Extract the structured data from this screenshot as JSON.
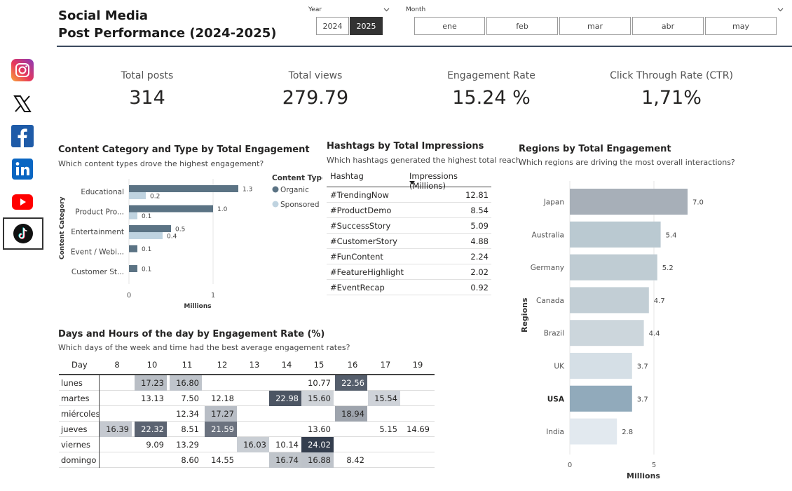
{
  "header": {
    "title_line1": "Social Media",
    "title_line2": "Post Performance (2024-2025)"
  },
  "social_icons": [
    "instagram-icon",
    "x-icon",
    "facebook-icon",
    "linkedin-icon",
    "youtube-icon",
    "tiktok-icon"
  ],
  "year_slicer": {
    "label": "Year",
    "options": [
      {
        "label": "2024",
        "selected": false
      },
      {
        "label": "2025",
        "selected": true
      }
    ]
  },
  "month_slicer": {
    "label": "Month",
    "options": [
      {
        "label": "ene",
        "selected": false
      },
      {
        "label": "feb",
        "selected": false
      },
      {
        "label": "mar",
        "selected": false
      },
      {
        "label": "abr",
        "selected": false
      },
      {
        "label": "may",
        "selected": false
      }
    ]
  },
  "kpis": [
    {
      "label": "Total posts",
      "value": "314"
    },
    {
      "label": "Total views",
      "value": "279.79"
    },
    {
      "label": "Engagement Rate",
      "value": "15.24 %"
    },
    {
      "label": "Click Through Rate (CTR)",
      "value": "1,71%"
    }
  ],
  "content_chart": {
    "title": "Content Category and Type by Total Engagement",
    "subtitle": "Which content types drove the highest engagement?",
    "ylabel": "Content Category",
    "xlabel": "Millions",
    "legend_title": "Content Type",
    "colors": {
      "Organic": "#5b7384",
      "Sponsored": "#bfd3e0"
    }
  },
  "hashtag_table": {
    "title": "Hashtags by Total Impressions",
    "subtitle": "Which hashtags generated the highest total reach",
    "col_hashtag": "Hashtag",
    "col_impressions": "Impressions (Millions)",
    "rows": [
      {
        "hashtag": "#TrendingNow",
        "value": "12.81"
      },
      {
        "hashtag": "#ProductDemo",
        "value": "8.54"
      },
      {
        "hashtag": "#SuccessStory",
        "value": "5.09"
      },
      {
        "hashtag": "#CustomerStory",
        "value": "4.88"
      },
      {
        "hashtag": "#FunContent",
        "value": "2.24"
      },
      {
        "hashtag": "#FeatureHighlight",
        "value": "2.02"
      },
      {
        "hashtag": "#EventRecap",
        "value": "0.92"
      }
    ]
  },
  "heatmap": {
    "title": "Days and Hours of the day by Engagement Rate (%)",
    "subtitle": "Which days of the week and time had the best average engagement rates?",
    "day_header": "Day",
    "hours": [
      "8",
      "10",
      "11",
      "12",
      "13",
      "14",
      "15",
      "16",
      "17",
      "19"
    ],
    "rows": [
      {
        "day": "lunes",
        "values": [
          null,
          "17.23",
          "16.80",
          null,
          null,
          null,
          "10.77",
          "22.56",
          null,
          null
        ]
      },
      {
        "day": "martes",
        "values": [
          null,
          "13.13",
          "7.50",
          "12.18",
          null,
          "22.98",
          "15.60",
          null,
          "15.54",
          null
        ]
      },
      {
        "day": "miércoles",
        "values": [
          null,
          null,
          "12.34",
          "17.27",
          null,
          null,
          null,
          "18.94",
          null,
          null
        ]
      },
      {
        "day": "jueves",
        "values": [
          "16.39",
          "22.32",
          "8.51",
          "21.59",
          null,
          null,
          "13.60",
          null,
          "5.15",
          "14.69"
        ]
      },
      {
        "day": "viernes",
        "values": [
          null,
          "9.09",
          "13.29",
          null,
          "16.03",
          "10.14",
          "24.02",
          null,
          null,
          null
        ]
      },
      {
        "day": "domingo",
        "values": [
          null,
          null,
          "8.60",
          "14.55",
          null,
          "16.74",
          "16.88",
          "8.42",
          null,
          null
        ]
      }
    ]
  },
  "chart_data": [
    {
      "type": "bar",
      "orientation": "horizontal",
      "title": "Content Category and Type by Total Engagement",
      "subtitle": "Which content types drove the highest engagement?",
      "ylabel": "Content Category",
      "xlabel": "Millions",
      "categories": [
        "Educational",
        "Product Pro...",
        "Entertainment",
        "Event / Webi...",
        "Customer St..."
      ],
      "series": [
        {
          "name": "Organic",
          "values": [
            1.3,
            1.0,
            0.5,
            0.1,
            0.1
          ]
        },
        {
          "name": "Sponsored",
          "values": [
            0.2,
            0.1,
            0.4,
            null,
            null
          ]
        }
      ],
      "xlim": [
        0,
        1.3
      ],
      "xticks": [
        "0",
        "1"
      ],
      "legend": "right",
      "grid": true
    },
    {
      "type": "bar",
      "orientation": "horizontal",
      "title": "Regions by Total Engagement",
      "subtitle": "Which regions are driving the most overall interactions?",
      "ylabel": "Regions",
      "xlabel": "Millions",
      "categories": [
        "Japan",
        "Australia",
        "Germany",
        "Canada",
        "Brazil",
        "UK",
        "USA",
        "India"
      ],
      "values": [
        7.0,
        5.4,
        5.2,
        4.7,
        4.4,
        3.7,
        3.7,
        2.8
      ],
      "labels": [
        "7.0",
        "5.4",
        "5.2",
        "4.7",
        "4.4",
        "3.7",
        "3.7",
        "2.8"
      ],
      "xlim": [
        0,
        7.0
      ],
      "xticks": [
        "0",
        "5"
      ],
      "highlighted": "USA",
      "grid": true
    }
  ]
}
